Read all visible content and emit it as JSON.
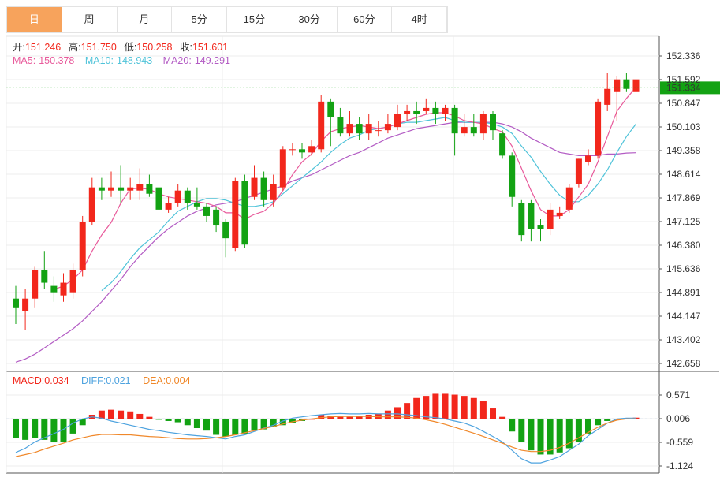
{
  "tabs": [
    {
      "label": "日",
      "active": true
    },
    {
      "label": "周",
      "active": false
    },
    {
      "label": "月",
      "active": false
    },
    {
      "label": "5分",
      "active": false
    },
    {
      "label": "15分",
      "active": false
    },
    {
      "label": "30分",
      "active": false
    },
    {
      "label": "60分",
      "active": false
    },
    {
      "label": "4时",
      "active": false
    }
  ],
  "ohlc_info": {
    "open_label": "开:",
    "open": "151.246",
    "high_label": "高:",
    "high": "151.750",
    "low_label": "低:",
    "low": "150.258",
    "close_label": "收:",
    "close": "151.601"
  },
  "ma_info": {
    "ma5_label": "MA5:",
    "ma5": "150.378",
    "ma10_label": "MA10:",
    "ma10": "148.943",
    "ma20_label": "MA20:",
    "ma20": "149.291"
  },
  "macd_info": {
    "macd_label": "MACD:",
    "macd": "0.034",
    "diff_label": "DIFF:",
    "diff": "0.021",
    "dea_label": "DEA:",
    "dea": "0.004"
  },
  "colors": {
    "up": "#f2271c",
    "down": "#13a213",
    "ma5": "#e85a9b",
    "ma10": "#4fc3d9",
    "ma20": "#b35cc4",
    "diff": "#4ea3df",
    "dea": "#f0882a",
    "grid": "#ececec",
    "current": "#13a213"
  },
  "chart_data": {
    "type": "candlestick",
    "price_axis": {
      "ticks": [
        "152.336",
        "151.592",
        "150.847",
        "150.103",
        "149.358",
        "148.614",
        "147.869",
        "147.125",
        "146.380",
        "145.636",
        "144.891",
        "144.147",
        "143.402",
        "142.658"
      ],
      "range": [
        142.658,
        152.336
      ]
    },
    "current_price": "151.334",
    "macd_axis": {
      "ticks": [
        "0.571",
        "0.006",
        "-0.559",
        "-1.124"
      ],
      "range": [
        -1.124,
        0.571
      ]
    },
    "candles": [
      [
        144.7,
        144.4,
        145.1,
        143.9
      ],
      [
        144.3,
        144.7,
        145.0,
        143.7
      ],
      [
        144.7,
        145.6,
        145.7,
        144.4
      ],
      [
        145.6,
        145.2,
        146.2,
        145.0
      ],
      [
        145.1,
        144.9,
        145.4,
        144.6
      ],
      [
        144.8,
        145.2,
        145.5,
        144.6
      ],
      [
        144.9,
        145.6,
        145.8,
        144.7
      ],
      [
        145.6,
        147.1,
        147.3,
        145.4
      ],
      [
        147.1,
        148.2,
        148.5,
        147.0
      ],
      [
        148.2,
        148.1,
        148.5,
        147.8
      ],
      [
        148.1,
        148.2,
        148.7,
        147.9
      ],
      [
        148.2,
        148.1,
        148.9,
        147.7
      ],
      [
        148.1,
        148.2,
        148.5,
        147.8
      ],
      [
        148.1,
        148.3,
        148.8,
        147.8
      ],
      [
        148.3,
        148.0,
        148.6,
        147.9
      ],
      [
        148.2,
        147.5,
        148.3,
        146.9
      ],
      [
        147.5,
        147.7,
        147.9,
        147.4
      ],
      [
        147.7,
        148.1,
        148.3,
        147.6
      ],
      [
        148.1,
        147.7,
        148.2,
        147.5
      ],
      [
        147.7,
        147.6,
        148.2,
        147.5
      ],
      [
        147.6,
        147.3,
        147.7,
        147.1
      ],
      [
        147.5,
        147.0,
        147.6,
        146.8
      ],
      [
        147.1,
        146.6,
        147.2,
        146.0
      ],
      [
        146.3,
        148.4,
        148.5,
        146.2
      ],
      [
        148.4,
        146.4,
        148.6,
        146.3
      ],
      [
        147.9,
        148.5,
        148.9,
        147.8
      ],
      [
        148.5,
        147.8,
        148.7,
        147.6
      ],
      [
        147.8,
        148.3,
        148.6,
        147.6
      ],
      [
        148.2,
        149.4,
        149.5,
        148.1
      ],
      [
        149.4,
        149.4,
        149.6,
        149.2
      ],
      [
        149.4,
        149.3,
        149.6,
        149.1
      ],
      [
        149.3,
        149.5,
        149.7,
        149.2
      ],
      [
        149.4,
        150.9,
        151.1,
        149.3
      ],
      [
        150.9,
        150.4,
        151.0,
        149.5
      ],
      [
        150.4,
        149.9,
        150.7,
        149.8
      ],
      [
        149.9,
        150.2,
        150.6,
        149.8
      ],
      [
        150.2,
        149.9,
        150.4,
        149.7
      ],
      [
        149.9,
        150.2,
        150.5,
        149.7
      ],
      [
        150.0,
        150.0,
        150.3,
        149.8
      ],
      [
        150.0,
        150.2,
        150.5,
        149.9
      ],
      [
        150.1,
        150.5,
        150.8,
        150.0
      ],
      [
        150.5,
        150.6,
        150.8,
        150.3
      ],
      [
        150.6,
        150.5,
        150.9,
        150.2
      ],
      [
        150.6,
        150.7,
        151.0,
        150.5
      ],
      [
        150.7,
        150.5,
        150.9,
        150.2
      ],
      [
        150.5,
        150.7,
        150.8,
        150.3
      ],
      [
        150.7,
        149.9,
        150.8,
        149.2
      ],
      [
        149.9,
        150.1,
        150.5,
        149.8
      ],
      [
        150.1,
        149.9,
        150.5,
        149.8
      ],
      [
        149.9,
        150.5,
        150.6,
        149.7
      ],
      [
        150.5,
        150.0,
        150.6,
        149.7
      ],
      [
        149.9,
        149.2,
        150.0,
        149.1
      ],
      [
        149.2,
        147.9,
        149.3,
        147.6
      ],
      [
        147.7,
        146.7,
        147.8,
        146.5
      ],
      [
        147.7,
        146.9,
        147.8,
        146.5
      ],
      [
        147.0,
        146.9,
        147.2,
        146.5
      ],
      [
        146.9,
        147.5,
        147.7,
        146.7
      ],
      [
        147.3,
        147.4,
        147.6,
        147.2
      ],
      [
        147.5,
        148.2,
        148.3,
        147.4
      ],
      [
        148.3,
        149.1,
        149.1,
        148.2
      ],
      [
        149.0,
        149.2,
        149.4,
        148.9
      ],
      [
        149.2,
        150.9,
        151.0,
        149.1
      ],
      [
        150.8,
        151.3,
        151.8,
        150.6
      ],
      [
        151.2,
        151.6,
        151.7,
        150.3
      ],
      [
        151.6,
        151.3,
        151.8,
        151.2
      ],
      [
        151.2,
        151.6,
        151.8,
        151.1
      ]
    ],
    "ma5": [
      null,
      null,
      null,
      null,
      144.98,
      145.1,
      145.3,
      145.6,
      146.2,
      146.7,
      147.1,
      147.7,
      148.15,
      148.18,
      148.14,
      148.0,
      147.9,
      147.85,
      147.8,
      147.75,
      147.7,
      147.6,
      147.4,
      147.4,
      147.2,
      147.35,
      147.45,
      147.7,
      148.1,
      148.6,
      149.0,
      149.25,
      149.65,
      149.95,
      150.05,
      150.1,
      150.15,
      150.1,
      150.05,
      150.1,
      150.2,
      150.3,
      150.4,
      150.5,
      150.55,
      150.55,
      150.45,
      150.3,
      150.25,
      150.2,
      150.05,
      149.95,
      149.5,
      148.8,
      148.1,
      147.5,
      147.3,
      147.3,
      147.5,
      147.9,
      148.3,
      149.0,
      149.8,
      150.6,
      151.0,
      151.35
    ],
    "ma10": [
      null,
      null,
      null,
      null,
      null,
      null,
      null,
      null,
      null,
      144.95,
      145.2,
      145.55,
      145.95,
      146.3,
      146.55,
      146.8,
      147.15,
      147.45,
      147.6,
      147.75,
      147.85,
      147.85,
      147.8,
      147.7,
      147.6,
      147.6,
      147.65,
      147.75,
      148.0,
      148.25,
      148.5,
      148.75,
      149.0,
      149.3,
      149.55,
      149.75,
      149.85,
      150.0,
      150.05,
      150.1,
      150.2,
      150.25,
      150.25,
      150.3,
      150.35,
      150.4,
      150.3,
      150.25,
      150.25,
      150.25,
      150.2,
      150.1,
      149.9,
      149.5,
      149.15,
      148.7,
      148.3,
      147.95,
      147.75,
      147.75,
      147.95,
      148.3,
      148.75,
      149.3,
      149.8,
      150.2
    ],
    "ma20": [
      142.7,
      142.8,
      142.95,
      143.15,
      143.35,
      143.55,
      143.75,
      144.0,
      144.3,
      144.6,
      144.95,
      145.3,
      145.7,
      146.05,
      146.35,
      146.65,
      146.9,
      147.1,
      147.3,
      147.45,
      147.55,
      147.65,
      147.7,
      147.75,
      147.85,
      147.95,
      148.05,
      148.15,
      148.25,
      148.4,
      148.5,
      148.6,
      148.75,
      148.9,
      149.05,
      149.2,
      149.3,
      149.45,
      149.6,
      149.75,
      149.85,
      149.95,
      150.05,
      150.1,
      150.15,
      150.2,
      150.25,
      150.25,
      150.25,
      150.25,
      150.25,
      150.2,
      150.1,
      149.95,
      149.75,
      149.6,
      149.45,
      149.3,
      149.25,
      149.2,
      149.2,
      149.2,
      149.25,
      149.25,
      149.28,
      149.29
    ],
    "macd_hist": [
      -0.45,
      -0.5,
      -0.45,
      -0.5,
      -0.55,
      -0.55,
      -0.35,
      -0.15,
      0.1,
      0.2,
      0.22,
      0.2,
      0.18,
      0.12,
      0.05,
      -0.02,
      -0.05,
      -0.08,
      -0.15,
      -0.22,
      -0.28,
      -0.38,
      -0.42,
      -0.38,
      -0.35,
      -0.28,
      -0.25,
      -0.2,
      -0.15,
      -0.1,
      -0.05,
      0.0,
      0.1,
      0.08,
      0.05,
      0.05,
      0.08,
      0.1,
      0.13,
      0.2,
      0.28,
      0.38,
      0.5,
      0.55,
      0.6,
      0.6,
      0.58,
      0.55,
      0.5,
      0.42,
      0.25,
      0.05,
      -0.3,
      -0.55,
      -0.75,
      -0.85,
      -0.85,
      -0.8,
      -0.7,
      -0.55,
      -0.35,
      -0.15,
      -0.05,
      0.0,
      0.02,
      0.03
    ],
    "macd_diff": [
      -0.8,
      -0.7,
      -0.55,
      -0.45,
      -0.35,
      -0.25,
      -0.1,
      0.0,
      0.05,
      0.02,
      -0.05,
      -0.1,
      -0.15,
      -0.2,
      -0.25,
      -0.28,
      -0.32,
      -0.35,
      -0.38,
      -0.4,
      -0.42,
      -0.45,
      -0.48,
      -0.42,
      -0.38,
      -0.3,
      -0.22,
      -0.15,
      -0.05,
      0.02,
      0.05,
      0.08,
      0.1,
      0.12,
      0.13,
      0.12,
      0.12,
      0.13,
      0.12,
      0.12,
      0.12,
      0.1,
      0.08,
      0.05,
      0.03,
      0.0,
      -0.05,
      -0.1,
      -0.18,
      -0.3,
      -0.42,
      -0.55,
      -0.75,
      -0.95,
      -1.05,
      -1.05,
      -0.98,
      -0.9,
      -0.75,
      -0.6,
      -0.4,
      -0.25,
      -0.1,
      0.0,
      0.02,
      0.02
    ],
    "macd_dea": [
      -0.9,
      -0.85,
      -0.8,
      -0.72,
      -0.65,
      -0.58,
      -0.5,
      -0.45,
      -0.4,
      -0.37,
      -0.37,
      -0.38,
      -0.38,
      -0.4,
      -0.42,
      -0.43,
      -0.45,
      -0.47,
      -0.48,
      -0.48,
      -0.47,
      -0.45,
      -0.42,
      -0.38,
      -0.33,
      -0.28,
      -0.23,
      -0.18,
      -0.12,
      -0.07,
      -0.03,
      0.0,
      0.03,
      0.05,
      0.06,
      0.06,
      0.06,
      0.06,
      0.05,
      0.05,
      0.05,
      0.04,
      0.02,
      -0.02,
      -0.07,
      -0.13,
      -0.2,
      -0.27,
      -0.34,
      -0.42,
      -0.5,
      -0.58,
      -0.67,
      -0.75,
      -0.78,
      -0.78,
      -0.75,
      -0.68,
      -0.58,
      -0.45,
      -0.32,
      -0.2,
      -0.1,
      -0.03,
      0.0,
      0.0
    ]
  }
}
